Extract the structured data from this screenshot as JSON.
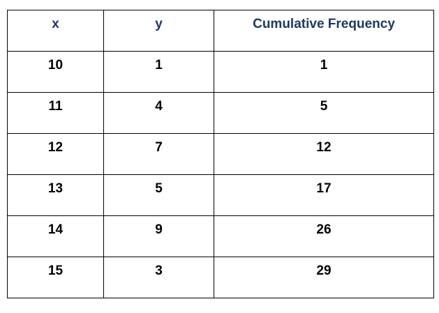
{
  "table": {
    "headers": [
      "x",
      "y",
      "Cumulative Frequency"
    ],
    "rows": [
      [
        "10",
        "1",
        "1"
      ],
      [
        "11",
        "4",
        "5"
      ],
      [
        "12",
        "7",
        "12"
      ],
      [
        "13",
        "5",
        "17"
      ],
      [
        "14",
        "9",
        "26"
      ],
      [
        "15",
        "3",
        "29"
      ]
    ]
  },
  "colors": {
    "header_text": "#1f3864",
    "cell_text": "#000000",
    "border": "#000000"
  }
}
